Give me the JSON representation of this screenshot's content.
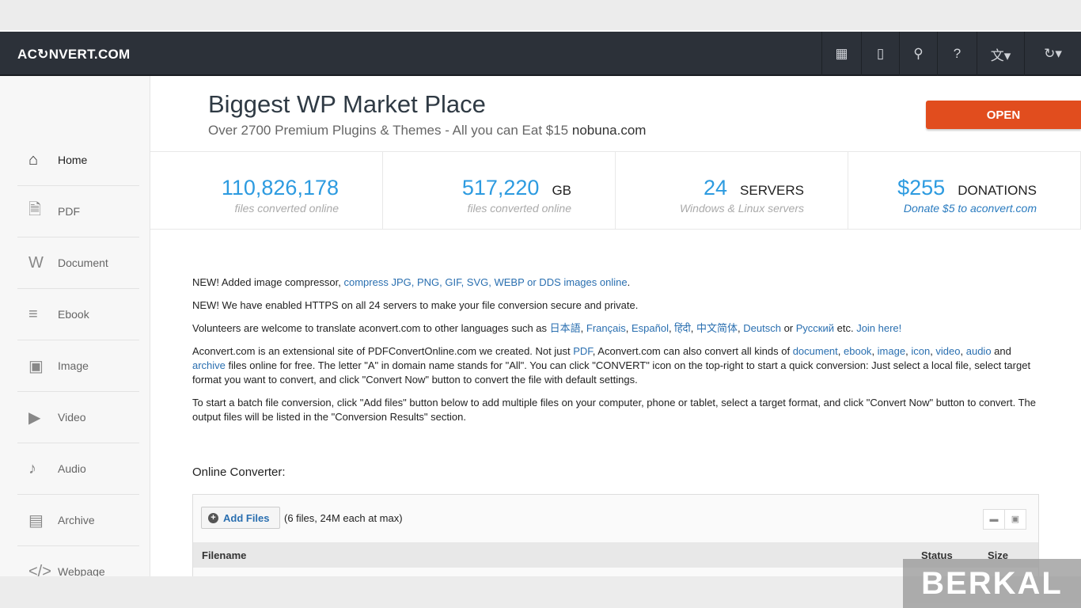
{
  "nav": {
    "logo": "AC↻NVERT.COM",
    "icons": [
      {
        "name": "grid-icon",
        "glyph": "▦"
      },
      {
        "name": "tablet-icon",
        "glyph": "▯"
      },
      {
        "name": "search-icon",
        "glyph": "⚲"
      },
      {
        "name": "help-icon",
        "glyph": "?"
      },
      {
        "name": "language-icon",
        "glyph": "文▾"
      },
      {
        "name": "convert-icon",
        "glyph": "↻▾"
      }
    ]
  },
  "sidebar": {
    "items": [
      {
        "label": "Home",
        "icon": "home-icon",
        "glyph": "⌂"
      },
      {
        "label": "PDF",
        "icon": "pdf-icon",
        "glyph": "🗎"
      },
      {
        "label": "Document",
        "icon": "document-icon",
        "glyph": "W"
      },
      {
        "label": "Ebook",
        "icon": "ebook-icon",
        "glyph": "≡"
      },
      {
        "label": "Image",
        "icon": "image-icon",
        "glyph": "▣"
      },
      {
        "label": "Video",
        "icon": "video-icon",
        "glyph": "▶"
      },
      {
        "label": "Audio",
        "icon": "audio-icon",
        "glyph": "♪"
      },
      {
        "label": "Archive",
        "icon": "archive-icon",
        "glyph": "▤"
      },
      {
        "label": "Webpage",
        "icon": "webpage-icon",
        "glyph": "</>"
      }
    ]
  },
  "ad": {
    "title": "Biggest WP Market Place",
    "subtitle": "Over 2700 Premium Plugins & Themes - All you can Eat $15",
    "domain": "nobuna.com",
    "button": "OPEN"
  },
  "stats": [
    {
      "number": "110,826,178",
      "unit": "",
      "sub": "files converted online"
    },
    {
      "number": "517,220",
      "unit": "GB",
      "sub": "files converted online"
    },
    {
      "number": "24",
      "unit": "SERVERS",
      "sub": "Windows & Linux servers"
    },
    {
      "number": "$255",
      "unit": "DONATIONS",
      "sub": "Donate $5 to aconvert.com"
    }
  ],
  "paragraphs": [
    [
      {
        "t": "NEW! Added image compressor, "
      },
      {
        "t": "compress JPG, PNG, GIF, SVG, WEBP or DDS images online",
        "link": true
      },
      {
        "t": "."
      }
    ],
    [
      {
        "t": "NEW! We have enabled HTTPS on all 24 servers to make your file conversion secure and private."
      }
    ],
    [
      {
        "t": "Volunteers are welcome to translate aconvert.com to other languages such as "
      },
      {
        "t": "日本語",
        "link": true
      },
      {
        "t": ", "
      },
      {
        "t": "Français",
        "link": true
      },
      {
        "t": ", "
      },
      {
        "t": "Español",
        "link": true
      },
      {
        "t": ", "
      },
      {
        "t": "हिंदी",
        "link": true
      },
      {
        "t": ", "
      },
      {
        "t": "中文简体",
        "link": true
      },
      {
        "t": ", "
      },
      {
        "t": "Deutsch",
        "link": true
      },
      {
        "t": " or "
      },
      {
        "t": "Русский",
        "link": true
      },
      {
        "t": " etc. "
      },
      {
        "t": "Join here!",
        "link": true
      }
    ],
    [
      {
        "t": "Aconvert.com is an extensional site of PDFConvertOnline.com we created. Not just "
      },
      {
        "t": "PDF",
        "link": true
      },
      {
        "t": ", Aconvert.com can also convert all kinds of "
      },
      {
        "t": "document",
        "link": true
      },
      {
        "t": ", "
      },
      {
        "t": "ebook",
        "link": true
      },
      {
        "t": ", "
      },
      {
        "t": "image",
        "link": true
      },
      {
        "t": ", "
      },
      {
        "t": "icon",
        "link": true
      },
      {
        "t": ", "
      },
      {
        "t": "video",
        "link": true
      },
      {
        "t": ", "
      },
      {
        "t": "audio",
        "link": true
      },
      {
        "t": " and "
      },
      {
        "t": "archive",
        "link": true
      },
      {
        "t": " files online for free. The letter \"A\" in domain name stands for \"All\". You can click \"CONVERT\" icon on the top-right to start a quick conversion: Just select a local file, select target format you want to convert, and click \"Convert Now\" button to convert the file with default settings."
      }
    ],
    [
      {
        "t": "To start a batch file conversion, click \"Add files\" button below to add multiple files on your computer, phone or tablet, select a target format, and click \"Convert Now\" button to convert. The output files will be listed in the \"Conversion Results\" section."
      }
    ]
  ],
  "converter": {
    "heading": "Online Converter:",
    "add_files": "Add Files",
    "hint": "(6 files, 24M each at max)",
    "columns": [
      "Filename",
      "Status",
      "Size"
    ]
  },
  "watermark": "BERKAL",
  "colors": {
    "navbar": "#2c3139",
    "accent": "#2d9be0",
    "open_button": "#e14d1e",
    "link": "#2a6fb0"
  }
}
